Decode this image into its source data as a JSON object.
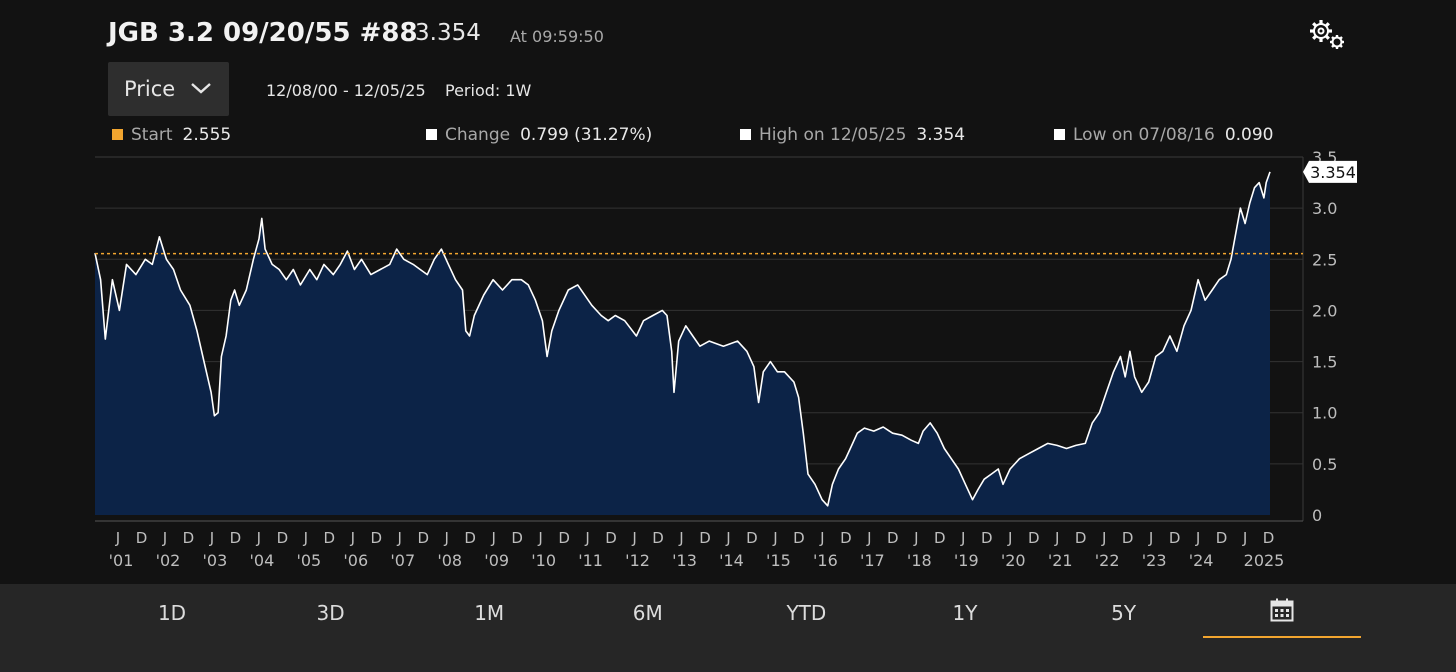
{
  "header": {
    "security": "JGB 3.2 09/20/55 #88",
    "last_price": "3.354",
    "as_of": "At 09:59:50"
  },
  "controls": {
    "mode_label": "Price",
    "date_range": "12/08/00 - 12/05/25",
    "period": "Period: 1W"
  },
  "stats": {
    "start": {
      "label": "Start",
      "value": "2.555",
      "color": "#f2a52f"
    },
    "change": {
      "label": "Change",
      "value": "0.799 (31.27%)",
      "color": "#ffffff"
    },
    "high": {
      "label": "High on 12/05/25",
      "value": "3.354",
      "color": "#ffffff"
    },
    "low": {
      "label": "Low on 07/08/16",
      "value": "0.090",
      "color": "#ffffff"
    }
  },
  "chart_data": {
    "type": "area",
    "x_start": 2000.93,
    "x_end": 2025.93,
    "series": [
      {
        "points": [
          [
            2000.93,
            2.56
          ],
          [
            2001.05,
            2.3
          ],
          [
            2001.15,
            1.72
          ],
          [
            2001.3,
            2.3
          ],
          [
            2001.45,
            2.0
          ],
          [
            2001.6,
            2.45
          ],
          [
            2001.8,
            2.35
          ],
          [
            2002.0,
            2.5
          ],
          [
            2002.15,
            2.45
          ],
          [
            2002.3,
            2.72
          ],
          [
            2002.45,
            2.5
          ],
          [
            2002.6,
            2.4
          ],
          [
            2002.75,
            2.2
          ],
          [
            2002.95,
            2.05
          ],
          [
            2003.1,
            1.8
          ],
          [
            2003.25,
            1.5
          ],
          [
            2003.4,
            1.2
          ],
          [
            2003.47,
            0.97
          ],
          [
            2003.55,
            1.0
          ],
          [
            2003.62,
            1.55
          ],
          [
            2003.72,
            1.75
          ],
          [
            2003.82,
            2.1
          ],
          [
            2003.9,
            2.2
          ],
          [
            2004.0,
            2.05
          ],
          [
            2004.15,
            2.2
          ],
          [
            2004.3,
            2.5
          ],
          [
            2004.42,
            2.7
          ],
          [
            2004.48,
            2.9
          ],
          [
            2004.55,
            2.6
          ],
          [
            2004.7,
            2.45
          ],
          [
            2004.85,
            2.4
          ],
          [
            2005.0,
            2.3
          ],
          [
            2005.15,
            2.4
          ],
          [
            2005.3,
            2.25
          ],
          [
            2005.5,
            2.4
          ],
          [
            2005.65,
            2.3
          ],
          [
            2005.8,
            2.45
          ],
          [
            2006.0,
            2.35
          ],
          [
            2006.15,
            2.45
          ],
          [
            2006.3,
            2.58
          ],
          [
            2006.45,
            2.4
          ],
          [
            2006.6,
            2.5
          ],
          [
            2006.8,
            2.35
          ],
          [
            2007.0,
            2.4
          ],
          [
            2007.2,
            2.45
          ],
          [
            2007.35,
            2.6
          ],
          [
            2007.5,
            2.5
          ],
          [
            2007.7,
            2.45
          ],
          [
            2007.85,
            2.4
          ],
          [
            2008.0,
            2.35
          ],
          [
            2008.15,
            2.5
          ],
          [
            2008.3,
            2.6
          ],
          [
            2008.45,
            2.45
          ],
          [
            2008.6,
            2.3
          ],
          [
            2008.75,
            2.2
          ],
          [
            2008.82,
            1.8
          ],
          [
            2008.9,
            1.75
          ],
          [
            2009.0,
            1.95
          ],
          [
            2009.2,
            2.15
          ],
          [
            2009.4,
            2.3
          ],
          [
            2009.6,
            2.2
          ],
          [
            2009.8,
            2.3
          ],
          [
            2010.0,
            2.3
          ],
          [
            2010.15,
            2.25
          ],
          [
            2010.3,
            2.1
          ],
          [
            2010.45,
            1.9
          ],
          [
            2010.55,
            1.55
          ],
          [
            2010.65,
            1.8
          ],
          [
            2010.8,
            2.0
          ],
          [
            2011.0,
            2.2
          ],
          [
            2011.2,
            2.25
          ],
          [
            2011.35,
            2.15
          ],
          [
            2011.5,
            2.05
          ],
          [
            2011.7,
            1.95
          ],
          [
            2011.85,
            1.9
          ],
          [
            2012.0,
            1.95
          ],
          [
            2012.2,
            1.9
          ],
          [
            2012.45,
            1.75
          ],
          [
            2012.6,
            1.9
          ],
          [
            2012.8,
            1.95
          ],
          [
            2013.0,
            2.0
          ],
          [
            2013.1,
            1.95
          ],
          [
            2013.2,
            1.6
          ],
          [
            2013.25,
            1.2
          ],
          [
            2013.35,
            1.7
          ],
          [
            2013.5,
            1.85
          ],
          [
            2013.65,
            1.75
          ],
          [
            2013.8,
            1.65
          ],
          [
            2014.0,
            1.7
          ],
          [
            2014.3,
            1.65
          ],
          [
            2014.6,
            1.7
          ],
          [
            2014.8,
            1.6
          ],
          [
            2014.95,
            1.45
          ],
          [
            2015.05,
            1.1
          ],
          [
            2015.15,
            1.4
          ],
          [
            2015.3,
            1.5
          ],
          [
            2015.45,
            1.4
          ],
          [
            2015.6,
            1.4
          ],
          [
            2015.8,
            1.3
          ],
          [
            2015.9,
            1.15
          ],
          [
            2016.0,
            0.8
          ],
          [
            2016.1,
            0.4
          ],
          [
            2016.25,
            0.3
          ],
          [
            2016.4,
            0.15
          ],
          [
            2016.52,
            0.09
          ],
          [
            2016.62,
            0.3
          ],
          [
            2016.75,
            0.45
          ],
          [
            2016.9,
            0.55
          ],
          [
            2017.0,
            0.65
          ],
          [
            2017.15,
            0.8
          ],
          [
            2017.3,
            0.85
          ],
          [
            2017.5,
            0.82
          ],
          [
            2017.7,
            0.86
          ],
          [
            2017.9,
            0.8
          ],
          [
            2018.1,
            0.78
          ],
          [
            2018.3,
            0.73
          ],
          [
            2018.45,
            0.7
          ],
          [
            2018.55,
            0.82
          ],
          [
            2018.7,
            0.9
          ],
          [
            2018.85,
            0.8
          ],
          [
            2019.0,
            0.65
          ],
          [
            2019.15,
            0.55
          ],
          [
            2019.3,
            0.45
          ],
          [
            2019.45,
            0.3
          ],
          [
            2019.6,
            0.15
          ],
          [
            2019.72,
            0.25
          ],
          [
            2019.85,
            0.35
          ],
          [
            2020.0,
            0.4
          ],
          [
            2020.15,
            0.45
          ],
          [
            2020.25,
            0.3
          ],
          [
            2020.4,
            0.45
          ],
          [
            2020.6,
            0.55
          ],
          [
            2020.8,
            0.6
          ],
          [
            2021.0,
            0.65
          ],
          [
            2021.2,
            0.7
          ],
          [
            2021.4,
            0.68
          ],
          [
            2021.6,
            0.65
          ],
          [
            2021.8,
            0.68
          ],
          [
            2022.0,
            0.7
          ],
          [
            2022.15,
            0.9
          ],
          [
            2022.3,
            1.0
          ],
          [
            2022.45,
            1.2
          ],
          [
            2022.6,
            1.4
          ],
          [
            2022.75,
            1.55
          ],
          [
            2022.85,
            1.35
          ],
          [
            2022.95,
            1.6
          ],
          [
            2023.05,
            1.35
          ],
          [
            2023.2,
            1.2
          ],
          [
            2023.35,
            1.3
          ],
          [
            2023.5,
            1.55
          ],
          [
            2023.65,
            1.6
          ],
          [
            2023.8,
            1.75
          ],
          [
            2023.95,
            1.6
          ],
          [
            2024.1,
            1.85
          ],
          [
            2024.25,
            2.0
          ],
          [
            2024.4,
            2.3
          ],
          [
            2024.55,
            2.1
          ],
          [
            2024.7,
            2.2
          ],
          [
            2024.85,
            2.3
          ],
          [
            2025.0,
            2.35
          ],
          [
            2025.1,
            2.5
          ],
          [
            2025.2,
            2.75
          ],
          [
            2025.3,
            3.0
          ],
          [
            2025.4,
            2.85
          ],
          [
            2025.5,
            3.05
          ],
          [
            2025.6,
            3.2
          ],
          [
            2025.7,
            3.25
          ],
          [
            2025.8,
            3.1
          ],
          [
            2025.85,
            3.25
          ],
          [
            2025.93,
            3.354
          ]
        ]
      }
    ],
    "ylim": [
      0,
      3.5
    ],
    "yticks": [
      "0",
      "0.5",
      "1.0",
      "1.5",
      "2.0",
      "2.5",
      "3.0",
      "3.5"
    ],
    "reference_line": {
      "value": 2.555,
      "color": "#f2a52f"
    },
    "last_value_label": "3.354",
    "xticks_months": [
      "J",
      "D",
      "J",
      "D",
      "J",
      "D",
      "J",
      "D",
      "J",
      "D",
      "J",
      "D",
      "J",
      "D",
      "J",
      "D",
      "J",
      "D",
      "J",
      "D",
      "J",
      "D",
      "J",
      "D",
      "J",
      "D",
      "J",
      "D",
      "J",
      "D",
      "J",
      "D",
      "J",
      "D",
      "J",
      "D",
      "J",
      "D",
      "J",
      "D",
      "J",
      "D",
      "J",
      "D",
      "J",
      "D",
      "J",
      "D",
      "J",
      "D"
    ],
    "xticks_years": [
      "'01",
      "'02",
      "'03",
      "'04",
      "'05",
      "'06",
      "'07",
      "'08",
      "'09",
      "'10",
      "'11",
      "'12",
      "'13",
      "'14",
      "'15",
      "'16",
      "'17",
      "'18",
      "'19",
      "'20",
      "'21",
      "'22",
      "'23",
      "'24",
      "2025"
    ],
    "fill_color": "#0c2347",
    "line_color": "#ffffff",
    "grid": true
  },
  "tabs": [
    {
      "label": "1D"
    },
    {
      "label": "3D"
    },
    {
      "label": "1M"
    },
    {
      "label": "6M"
    },
    {
      "label": "YTD"
    },
    {
      "label": "1Y"
    },
    {
      "label": "5Y"
    },
    {
      "label": "",
      "icon": "calendar-icon",
      "active": true
    }
  ]
}
